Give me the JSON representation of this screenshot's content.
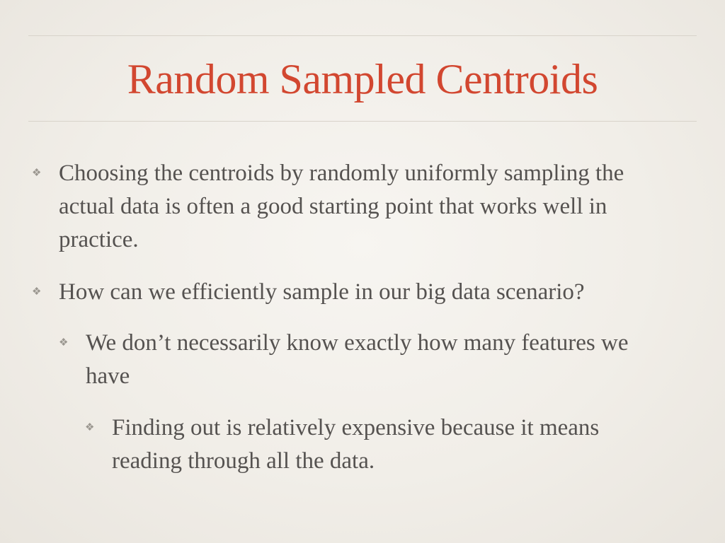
{
  "slide": {
    "title": "Random Sampled Centroids",
    "bullets": [
      {
        "level": 1,
        "marker": "❖",
        "text": "Choosing the centroids by randomly uniformly sampling the actual data is often a good starting point that works well in practice."
      },
      {
        "level": 1,
        "marker": "❖",
        "text": "How can we efficiently sample in our big data scenario?"
      },
      {
        "level": 2,
        "marker": "❖",
        "text": "We don’t necessarily know exactly how many features we have"
      },
      {
        "level": 3,
        "marker": "❖",
        "text": "Finding out is relatively expensive because it means reading through all the data."
      }
    ],
    "colors": {
      "title": "#d24730",
      "body_text": "#555250",
      "marker": "#9b9790",
      "rule": "#d8d3ca",
      "background": "#f3f0eb"
    }
  }
}
